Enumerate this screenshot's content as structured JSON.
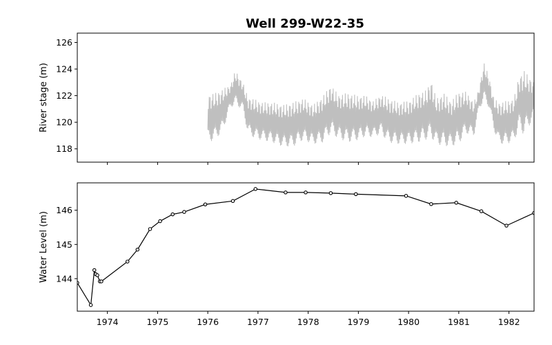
{
  "chart_data": {
    "title": "Well 299-W22-35",
    "xlim": [
      1973.4,
      1982.5
    ],
    "x_ticks": [
      "1974",
      "1975",
      "1976",
      "1977",
      "1978",
      "1979",
      "1980",
      "1981",
      "1982"
    ],
    "panels": [
      {
        "type": "line",
        "ylabel": "River stage (m)",
        "ylim": [
          117.0,
          126.7
        ],
        "y_ticks": [
          118,
          120,
          122,
          124,
          126
        ],
        "series_color": "#bfbfbf",
        "series": [
          {
            "x": [
              1976.0,
              1976.15,
              1976.3,
              1976.45,
              1976.55,
              1976.7,
              1976.8,
              1976.95,
              1977.1,
              1977.3,
              1977.5,
              1977.7,
              1977.9,
              1978.1,
              1978.3,
              1978.45,
              1978.6,
              1978.8,
              1979.0,
              1979.15,
              1979.3,
              1979.45,
              1979.6,
              1979.8,
              1980.0,
              1980.2,
              1980.35,
              1980.45,
              1980.55,
              1980.7,
              1980.85,
              1981.0,
              1981.15,
              1981.3,
              1981.4,
              1981.5,
              1981.6,
              1981.7,
              1981.8,
              1981.95,
              1982.1,
              1982.2,
              1982.3,
              1982.5
            ],
            "min": [
              118.3,
              118.5,
              119.2,
              121.0,
              121.2,
              120.8,
              119.0,
              118.6,
              118.5,
              118.3,
              118.0,
              118.0,
              118.5,
              118.2,
              118.3,
              119.0,
              118.6,
              118.3,
              118.5,
              118.8,
              118.7,
              119.0,
              118.3,
              118.2,
              118.2,
              118.3,
              118.5,
              118.6,
              118.2,
              118.0,
              118.0,
              118.2,
              119.0,
              118.8,
              120.8,
              121.5,
              121.0,
              119.3,
              118.2,
              118.2,
              118.4,
              119.3,
              118.8,
              120.2
            ],
            "max": [
              122.1,
              122.2,
              122.5,
              122.8,
              123.9,
              123.0,
              121.9,
              121.7,
              121.5,
              121.5,
              121.3,
              121.5,
              121.8,
              121.3,
              122.0,
              122.8,
              122.1,
              122.2,
              122.0,
              122.0,
              121.6,
              122.1,
              121.8,
              121.5,
              121.6,
              122.2,
              122.4,
              123.2,
              121.8,
              122.2,
              121.6,
              122.3,
              122.3,
              121.5,
              122.5,
              124.5,
              123.5,
              121.8,
              121.5,
              121.6,
              121.8,
              123.5,
              123.9,
              123.0
            ]
          }
        ]
      },
      {
        "type": "line",
        "ylabel": "Water Level (m)",
        "ylim": [
          143.05,
          146.8
        ],
        "y_ticks": [
          144,
          145,
          146
        ],
        "series_color": "#000000",
        "series": [
          {
            "x": [
              1973.4,
              1973.67,
              1973.74,
              1973.77,
              1973.8,
              1973.85,
              1973.88,
              1974.4,
              1974.6,
              1974.85,
              1975.05,
              1975.3,
              1975.53,
              1975.95,
              1976.5,
              1976.95,
              1977.55,
              1977.95,
              1978.45,
              1978.95,
              1979.95,
              1980.45,
              1980.95,
              1981.45,
              1981.95,
              1982.5
            ],
            "y": [
              143.88,
              143.23,
              144.25,
              144.13,
              144.1,
              143.92,
              143.92,
              144.5,
              144.85,
              145.45,
              145.68,
              145.88,
              145.95,
              146.17,
              146.27,
              146.62,
              146.52,
              146.52,
              146.5,
              146.47,
              146.42,
              146.18,
              146.22,
              145.97,
              145.55,
              145.92
            ]
          }
        ]
      }
    ]
  }
}
